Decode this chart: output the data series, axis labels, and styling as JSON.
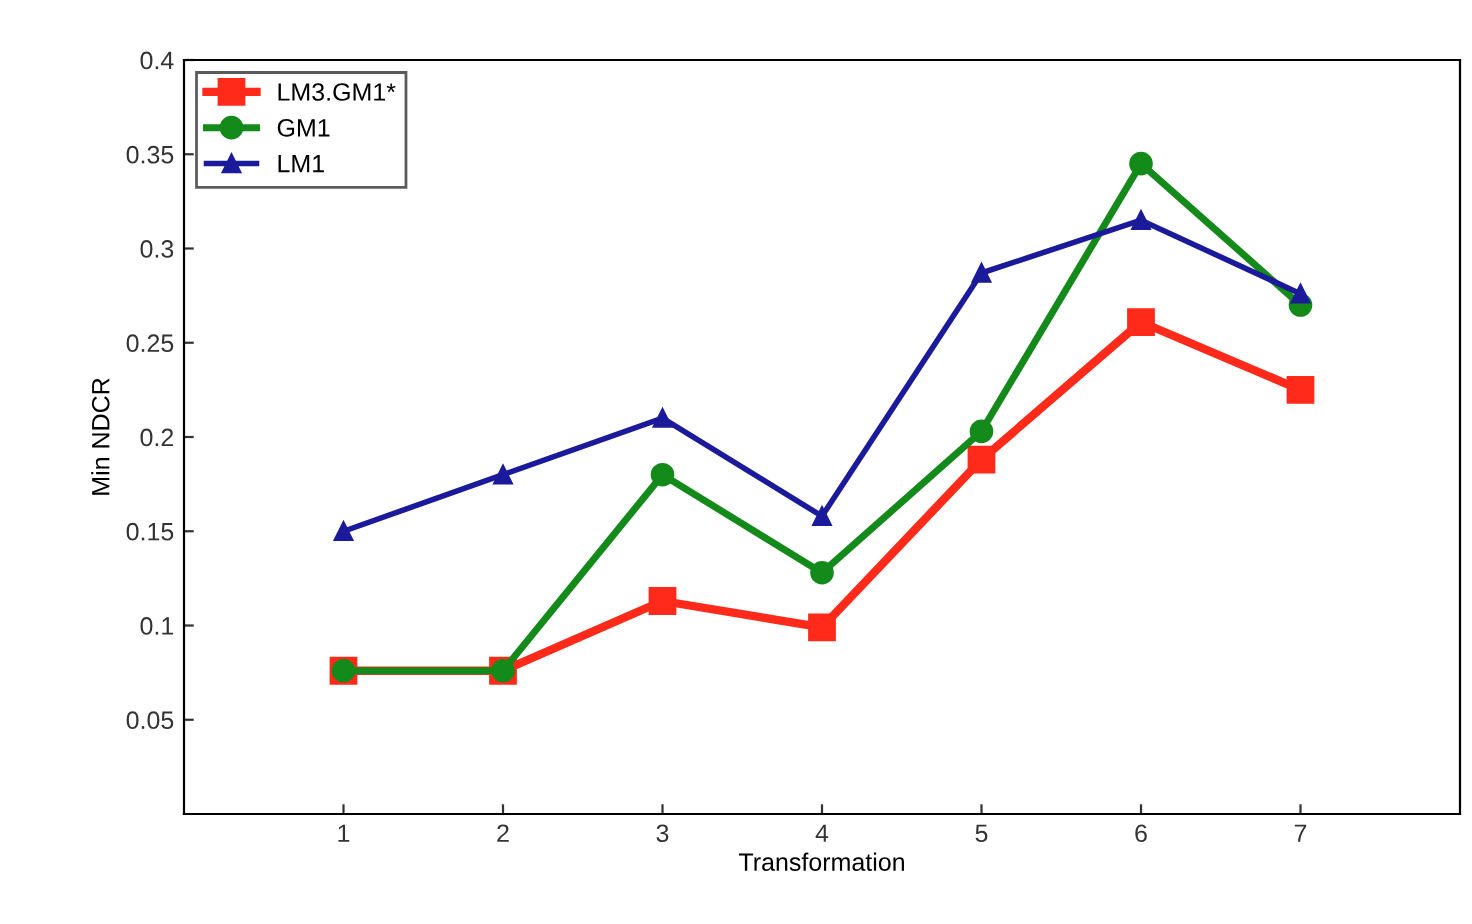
{
  "chart_data": {
    "type": "line",
    "xlabel": "Transformation",
    "ylabel": "Min NDCR",
    "x": [
      1,
      2,
      3,
      4,
      5,
      6,
      7
    ],
    "series": [
      {
        "name": "LM3.GM1*",
        "color": "#ff2a1a",
        "marker": "square",
        "values": [
          0.076,
          0.076,
          0.113,
          0.099,
          0.188,
          0.261,
          0.225
        ]
      },
      {
        "name": "GM1",
        "color": "#138a1a",
        "marker": "circle",
        "values": [
          0.076,
          0.076,
          0.18,
          0.128,
          0.203,
          0.345,
          0.27
        ]
      },
      {
        "name": "LM1",
        "color": "#1a1a9a",
        "marker": "triangle",
        "values": [
          0.15,
          0.18,
          0.21,
          0.158,
          0.287,
          0.315,
          0.276
        ]
      }
    ],
    "xlim": [
      0,
      8
    ],
    "xticks": [
      1,
      2,
      3,
      4,
      5,
      6,
      7
    ],
    "ylim": [
      0,
      0.4
    ],
    "yticks": [
      0.05,
      0.1,
      0.15,
      0.2,
      0.25,
      0.3,
      0.35,
      0.4
    ],
    "grid": false,
    "legend": "top left",
    "line_style": "solid"
  }
}
